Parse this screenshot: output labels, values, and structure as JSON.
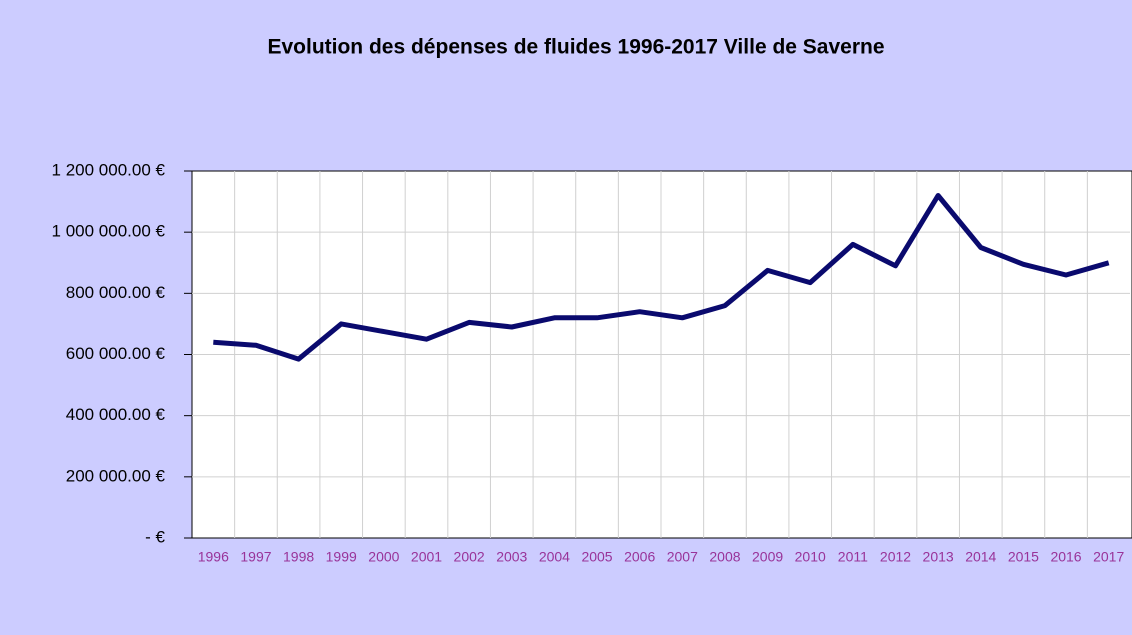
{
  "chart_data": {
    "type": "line",
    "title": "Evolution des dépenses de fluides 1996-2017  Ville de Saverne",
    "categories": [
      "1996",
      "1997",
      "1998",
      "1999",
      "2000",
      "2001",
      "2002",
      "2003",
      "2004",
      "2005",
      "2006",
      "2007",
      "2008",
      "2009",
      "2010",
      "2011",
      "2012",
      "2013",
      "2014",
      "2015",
      "2016",
      "2017"
    ],
    "series": [
      {
        "color": "#0a0a6e",
        "values": [
          640000,
          630000,
          585000,
          700000,
          675000,
          650000,
          705000,
          690000,
          720000,
          720000,
          740000,
          720000,
          760000,
          875000,
          835000,
          960000,
          890000,
          1120000,
          950000,
          895000,
          860000,
          900000
        ]
      }
    ],
    "ylim": [
      0,
      1200000
    ],
    "yticks": [
      {
        "value": 0,
        "label": "-   €"
      },
      {
        "value": 200000,
        "label": "200 000.00 €"
      },
      {
        "value": 400000,
        "label": "400 000.00 €"
      },
      {
        "value": 600000,
        "label": "600 000.00 €"
      },
      {
        "value": 800000,
        "label": "800 000.00 €"
      },
      {
        "value": 1000000,
        "label": "1 000 000.00 €"
      },
      {
        "value": 1200000,
        "label": "1 200 000.00 €"
      }
    ],
    "grid": true
  }
}
